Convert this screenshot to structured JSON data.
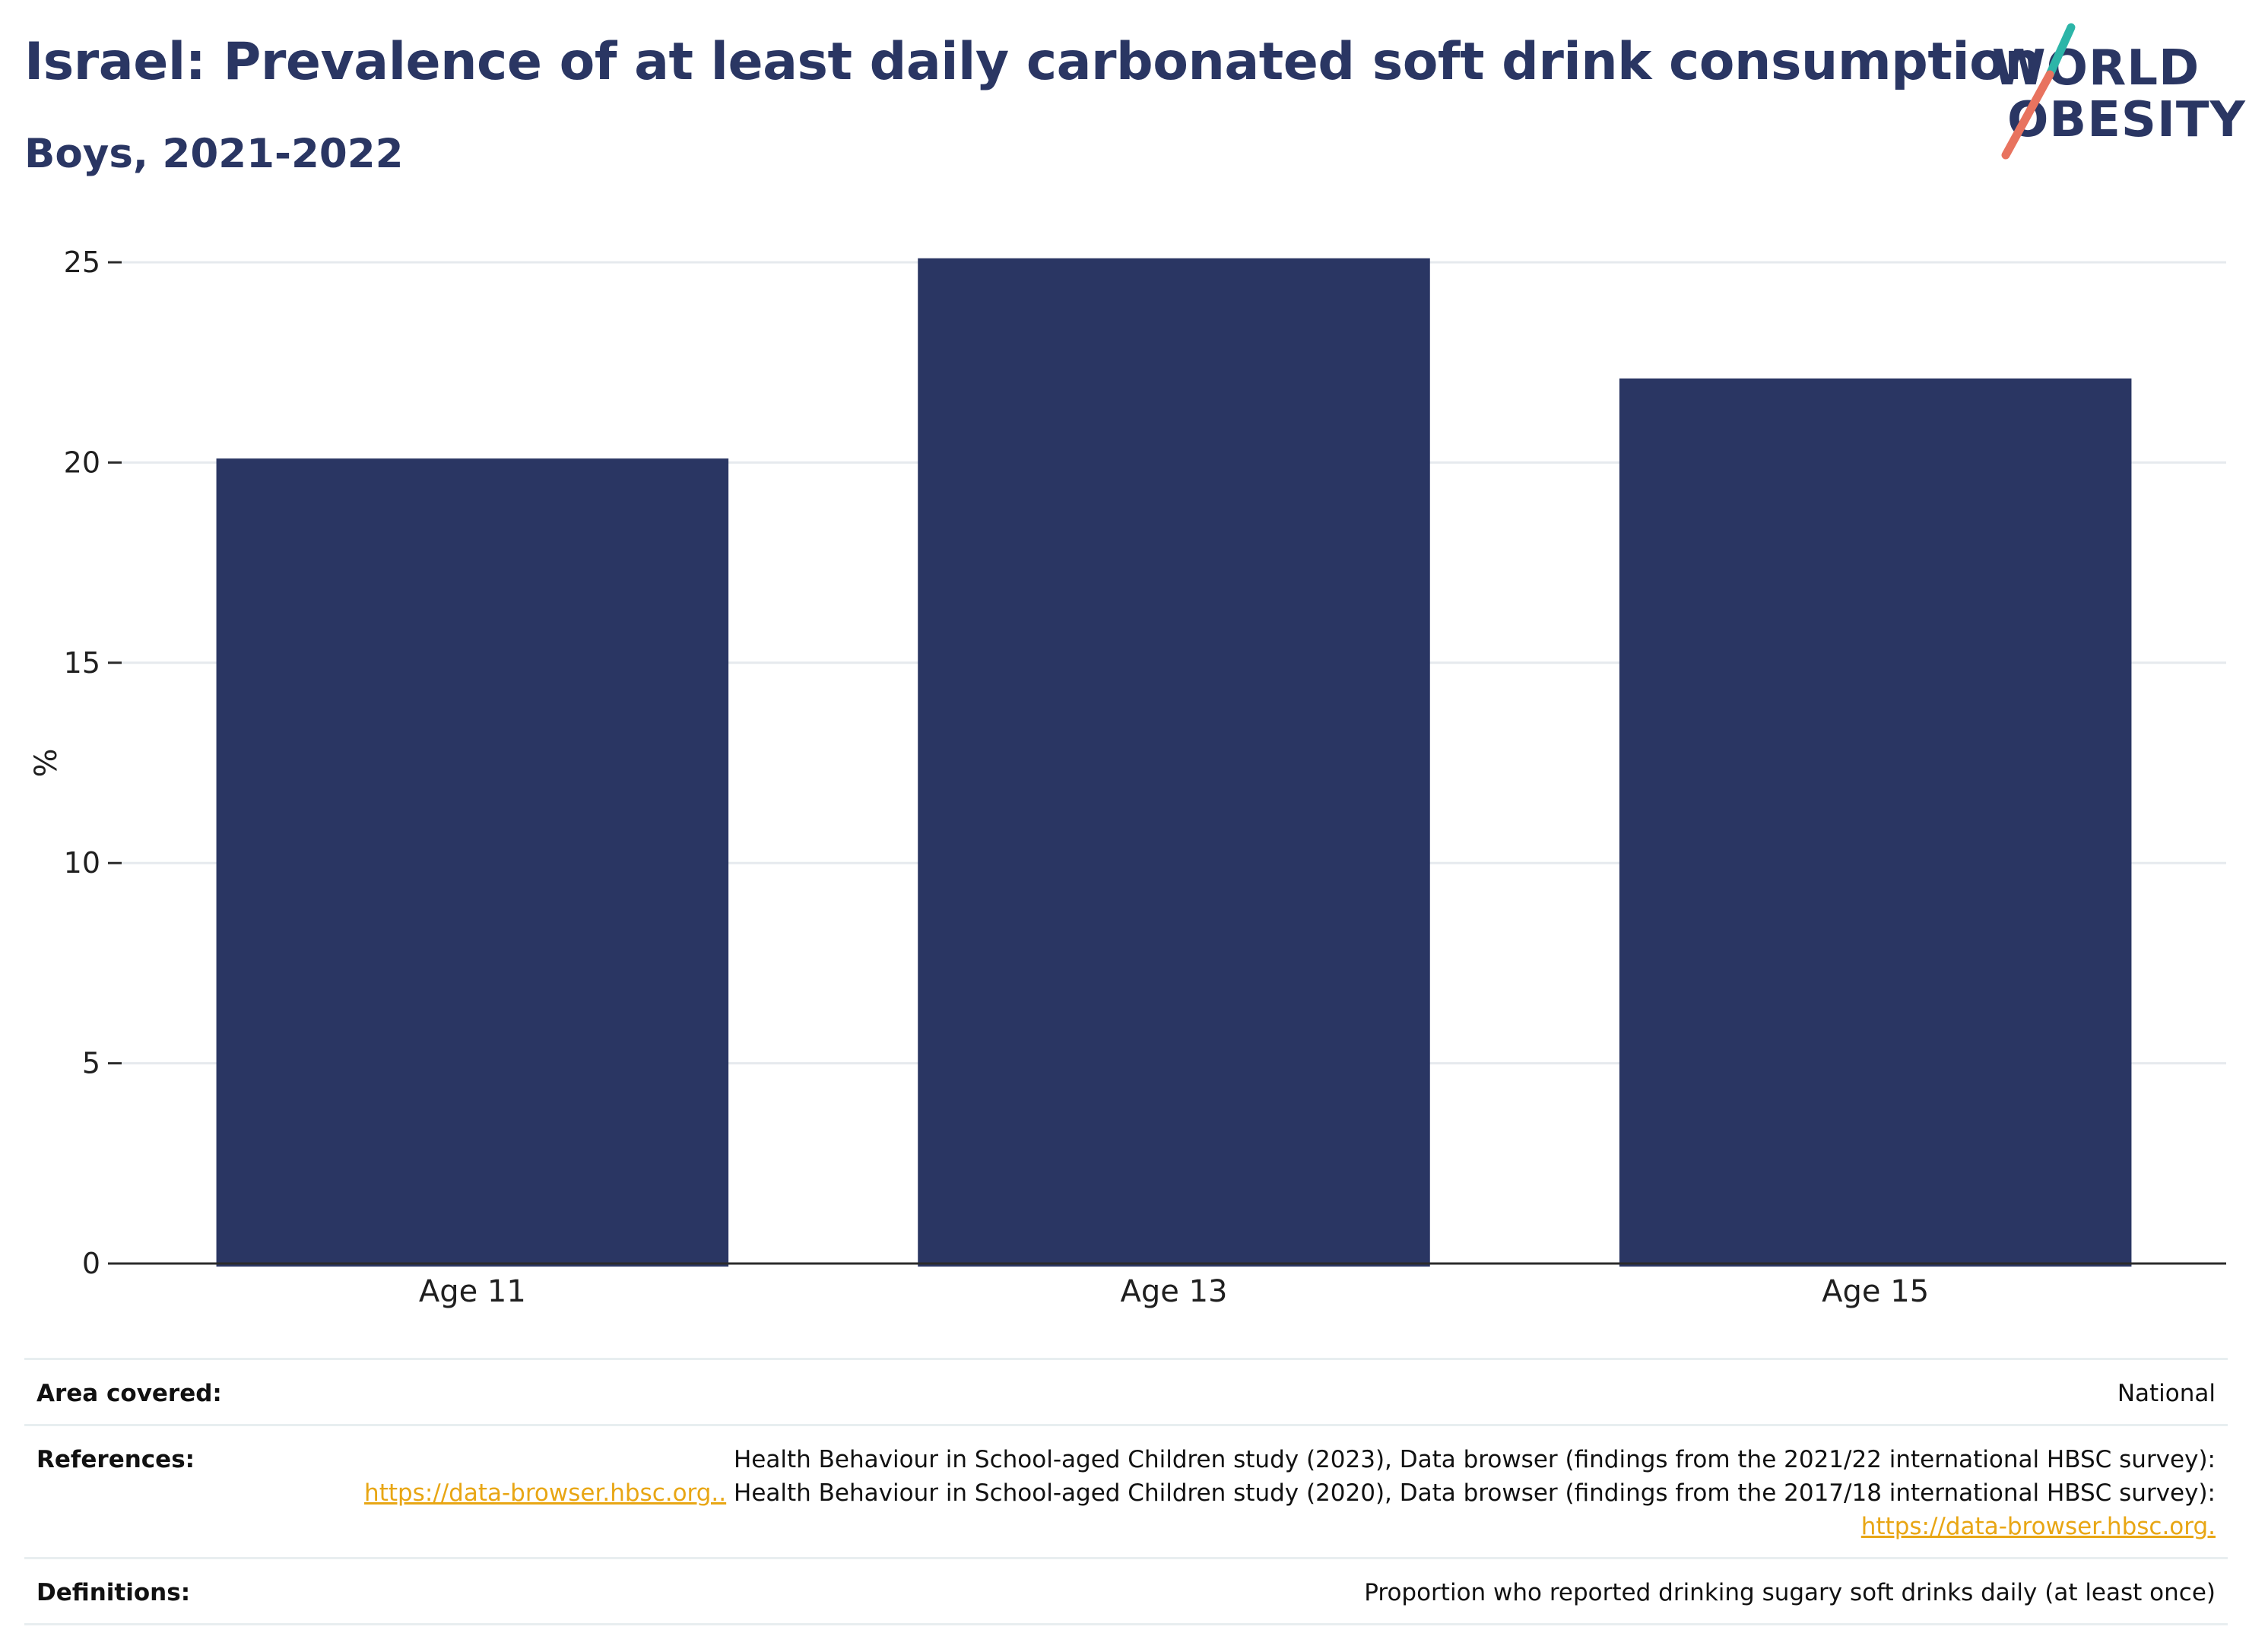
{
  "header": {
    "title": "Israel: Prevalence of at least daily carbonated soft drink consumption",
    "subtitle": "Boys, 2021-2022"
  },
  "logo": {
    "line1": "WORLD",
    "line2": "OBESITY",
    "colors": {
      "text": "#2a3663",
      "teal": "#2cb5a8",
      "coral": "#e8735f"
    }
  },
  "chart_data": {
    "type": "bar",
    "categories": [
      "Age 11",
      "Age 13",
      "Age 15"
    ],
    "values": [
      20.1,
      25.1,
      22.1
    ],
    "ylabel": "%",
    "xlabel": "",
    "ylim": [
      0,
      25
    ],
    "yticks": [
      0,
      5,
      10,
      15,
      20,
      25
    ],
    "grid": true,
    "colors": {
      "bar": "#2a3663",
      "grid": "#e6eaee",
      "axis": "#2b2b2b"
    }
  },
  "meta": {
    "area": {
      "key": "Area covered:",
      "value": "National"
    },
    "references": {
      "key": "References:",
      "text1": "Health Behaviour in School-aged Children study (2023), Data browser (findings from the 2021/22 international HBSC survey):",
      "link1": "https://data-browser.hbsc.org..",
      "text2": " Health Behaviour in School-aged Children study (2020), Data browser (findings from the 2017/18 international HBSC survey): ",
      "link2": "https://data-browser.hbsc.org."
    },
    "definitions": {
      "key": "Definitions:",
      "value": "Proportion who reported drinking sugary soft drinks daily (at least once)"
    }
  }
}
